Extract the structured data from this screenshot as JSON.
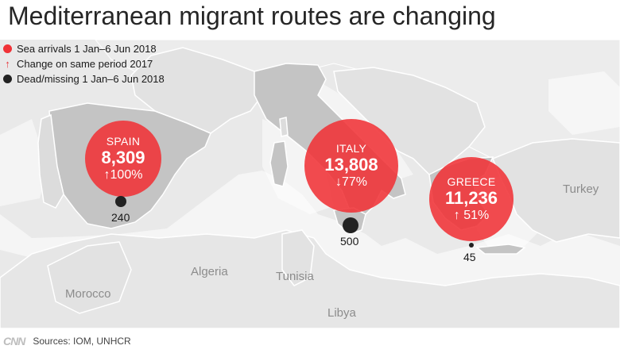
{
  "title": "Mediterranean migrant routes are changing",
  "legend": {
    "sea_arrivals": "Sea arrivals 1 Jan–6 Jun 2018",
    "change": "Change on same period 2017",
    "change_arrow": "↑",
    "dead_missing": "Dead/missing 1 Jan–6 Jun 2018"
  },
  "colors": {
    "arrival": "#f03237",
    "dead": "#222222",
    "land": "#e9e9e9",
    "country_highlight": "#c4c4c4"
  },
  "countries": [
    {
      "key": "spain",
      "name": "SPAIN",
      "arrivals": "8,309",
      "change": "↑100%",
      "change_direction": "up",
      "dead_missing": "240",
      "arrivals_value": 8309,
      "change_value": 100,
      "dead_value": 240
    },
    {
      "key": "italy",
      "name": "ITALY",
      "arrivals": "13,808",
      "change": "↓77%",
      "change_direction": "down",
      "dead_missing": "500",
      "arrivals_value": 13808,
      "change_value": -77,
      "dead_value": 500
    },
    {
      "key": "greece",
      "name": "GREECE",
      "arrivals": "11,236",
      "change": "↑ 51%",
      "change_direction": "up",
      "dead_missing": "45",
      "arrivals_value": 11236,
      "change_value": 51,
      "dead_value": 45
    }
  ],
  "map_labels": {
    "algeria": "Algeria",
    "tunisia": "Tunisia",
    "morocco": "Morocco",
    "libya": "Libya",
    "turkey": "Turkey"
  },
  "footer": {
    "logo": "CNN",
    "sources": "Sources: IOM, UNHCR"
  }
}
